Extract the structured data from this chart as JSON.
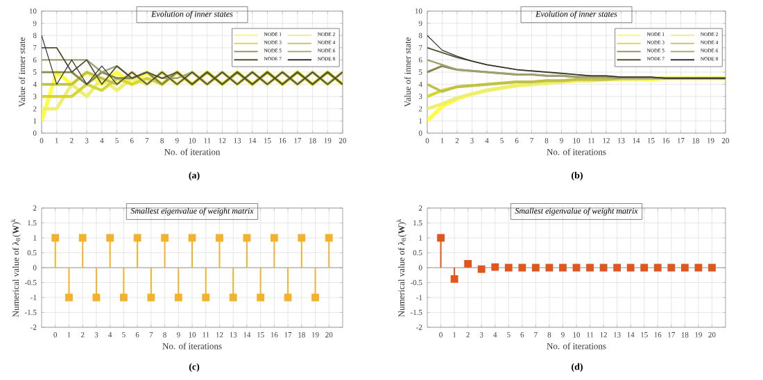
{
  "chart_data": [
    {
      "type": "line",
      "title": "*Evolution of inner states*",
      "xlabel": "No. of iteration",
      "ylabel": "Value of inner state",
      "annotations": [
        "**(a)**"
      ],
      "x": [
        0,
        1,
        2,
        3,
        4,
        5,
        6,
        7,
        8,
        9,
        10,
        11,
        12,
        13,
        14,
        15,
        16,
        17,
        18,
        19,
        20
      ],
      "xlim": [
        0,
        20
      ],
      "ylim": [
        0,
        10
      ],
      "xticks": [
        0,
        1,
        2,
        3,
        4,
        5,
        6,
        7,
        8,
        9,
        10,
        11,
        12,
        13,
        14,
        15,
        16,
        17,
        18,
        19,
        20
      ],
      "yticks": [
        0,
        1,
        2,
        3,
        4,
        5,
        6,
        7,
        8,
        9,
        10
      ],
      "grid": true,
      "legend": "top right",
      "series": [
        {
          "name": "NODE 1",
          "color": "#ffff40",
          "values": [
            1,
            5,
            4,
            5,
            4,
            5,
            4,
            5,
            4,
            5,
            4,
            5,
            4,
            5,
            4,
            5,
            4,
            5,
            4,
            5,
            4
          ]
        },
        {
          "name": "NODE 2",
          "color": "#eeee70",
          "values": [
            2,
            2,
            4,
            3,
            4.5,
            3.5,
            4.5,
            4,
            5,
            4,
            5,
            4,
            5,
            4,
            5,
            4,
            5,
            4,
            5,
            4,
            5
          ]
        },
        {
          "name": "NODE 3",
          "color": "#d6d630",
          "values": [
            3,
            3,
            3,
            4,
            3.5,
            4.5,
            4,
            4.5,
            4,
            5,
            4,
            5,
            4,
            5,
            4,
            5,
            4,
            5,
            4,
            5,
            4
          ]
        },
        {
          "name": "NODE 4",
          "color": "#c0c050",
          "values": [
            4,
            4,
            4,
            5,
            4.5,
            4,
            5,
            4,
            5,
            4,
            5,
            4,
            5,
            4,
            5,
            4,
            5,
            4,
            5,
            4,
            5
          ]
        },
        {
          "name": "NODE 5",
          "color": "#8a8a50",
          "values": [
            5,
            5,
            5,
            4,
            5,
            4.5,
            4.5,
            5,
            4,
            5,
            4,
            5,
            4,
            5,
            4,
            5,
            4,
            5,
            4,
            5,
            4
          ]
        },
        {
          "name": "NODE 6",
          "color": "#a0a070",
          "values": [
            6,
            6,
            6,
            6,
            5,
            5.5,
            4.5,
            5,
            4.5,
            4.5,
            5,
            4,
            5,
            4,
            5,
            4,
            5,
            4,
            5,
            4,
            5
          ]
        },
        {
          "name": "NODE 7",
          "color": "#505030",
          "values": [
            7,
            7,
            5,
            6,
            4,
            5.5,
            4.5,
            5,
            4.5,
            5,
            4,
            5,
            4,
            5,
            4,
            5,
            4,
            5,
            4,
            5,
            4
          ]
        },
        {
          "name": "NODE 8",
          "color": "#303030",
          "values": [
            8,
            4,
            6,
            4,
            5.5,
            4,
            5,
            4,
            5,
            4,
            5,
            4,
            5,
            4,
            5,
            4,
            5,
            4,
            5,
            4,
            5
          ]
        }
      ]
    },
    {
      "type": "line",
      "title": "*Evolution of inner states*",
      "xlabel": "No. of iterations",
      "ylabel": "Value of inner state",
      "annotations": [
        "**(b)**"
      ],
      "x": [
        0,
        1,
        2,
        3,
        4,
        5,
        6,
        7,
        8,
        9,
        10,
        11,
        12,
        13,
        14,
        15,
        16,
        17,
        18,
        19,
        20
      ],
      "xlim": [
        0,
        20
      ],
      "ylim": [
        0,
        10
      ],
      "xticks": [
        0,
        1,
        2,
        3,
        4,
        5,
        6,
        7,
        8,
        9,
        10,
        11,
        12,
        13,
        14,
        15,
        16,
        17,
        18,
        19,
        20
      ],
      "yticks": [
        0,
        1,
        2,
        3,
        4,
        5,
        6,
        7,
        8,
        9,
        10
      ],
      "grid": true,
      "legend": "top right",
      "series": [
        {
          "name": "NODE 1",
          "color": "#ffff40",
          "values": [
            1,
            2.2,
            2.8,
            3.2,
            3.5,
            3.7,
            3.9,
            4,
            4.1,
            4.2,
            4.3,
            4.3,
            4.4,
            4.4,
            4.4,
            4.4,
            4.5,
            4.5,
            4.5,
            4.5,
            4.5
          ]
        },
        {
          "name": "NODE 2",
          "color": "#eeee70",
          "values": [
            2,
            2.4,
            2.9,
            3.2,
            3.5,
            3.7,
            3.9,
            4,
            4.1,
            4.2,
            4.3,
            4.3,
            4.4,
            4.4,
            4.4,
            4.5,
            4.5,
            4.5,
            4.5,
            4.5,
            4.5
          ]
        },
        {
          "name": "NODE 3",
          "color": "#d6d630",
          "values": [
            3,
            3.5,
            3.8,
            3.9,
            4,
            4.1,
            4.2,
            4.2,
            4.3,
            4.3,
            4.4,
            4.4,
            4.4,
            4.5,
            4.5,
            4.5,
            4.5,
            4.5,
            4.5,
            4.5,
            4.5
          ]
        },
        {
          "name": "NODE 4",
          "color": "#c0c050",
          "values": [
            4,
            3.4,
            3.8,
            3.9,
            4,
            4.1,
            4.2,
            4.2,
            4.3,
            4.3,
            4.4,
            4.4,
            4.4,
            4.5,
            4.5,
            4.5,
            4.5,
            4.5,
            4.5,
            4.5,
            4.5
          ]
        },
        {
          "name": "NODE 5",
          "color": "#8a8a50",
          "values": [
            5,
            5.5,
            5.2,
            5.1,
            5,
            4.9,
            4.8,
            4.8,
            4.7,
            4.7,
            4.6,
            4.6,
            4.6,
            4.5,
            4.5,
            4.5,
            4.5,
            4.5,
            4.5,
            4.5,
            4.5
          ]
        },
        {
          "name": "NODE 6",
          "color": "#a0a070",
          "values": [
            6,
            5.6,
            5.2,
            5.1,
            5,
            4.9,
            4.8,
            4.8,
            4.7,
            4.7,
            4.6,
            4.6,
            4.6,
            4.5,
            4.5,
            4.5,
            4.5,
            4.5,
            4.5,
            4.5,
            4.5
          ]
        },
        {
          "name": "NODE 7",
          "color": "#505030",
          "values": [
            7,
            6.6,
            6.2,
            5.9,
            5.6,
            5.4,
            5.2,
            5.1,
            5,
            4.9,
            4.8,
            4.7,
            4.7,
            4.6,
            4.6,
            4.6,
            4.5,
            4.5,
            4.5,
            4.5,
            4.5
          ]
        },
        {
          "name": "NODE 8",
          "color": "#303030",
          "values": [
            8,
            6.8,
            6.3,
            5.9,
            5.6,
            5.4,
            5.2,
            5.1,
            5,
            4.9,
            4.8,
            4.7,
            4.7,
            4.6,
            4.6,
            4.6,
            4.5,
            4.5,
            4.5,
            4.5,
            4.5
          ]
        }
      ]
    },
    {
      "type": "lollipop",
      "title": "*Smallest eigenvalue of weight matrix*",
      "xlabel": "No. of iterations",
      "ylabel": "Numerical value of λ$_{8}$(**W**)$^{k}$",
      "annotations": [
        "**(c)**"
      ],
      "x": [
        0,
        1,
        2,
        3,
        4,
        5,
        6,
        7,
        8,
        9,
        10,
        11,
        12,
        13,
        14,
        15,
        16,
        17,
        18,
        19,
        20
      ],
      "xlim": [
        -1,
        21
      ],
      "ylim": [
        -2,
        2
      ],
      "xticks": [
        0,
        1,
        2,
        3,
        4,
        5,
        6,
        7,
        8,
        9,
        10,
        11,
        12,
        13,
        14,
        15,
        16,
        17,
        18,
        19,
        20
      ],
      "yticks": [
        -2,
        -1.5,
        -1,
        -0.5,
        0,
        0.5,
        1,
        1.5,
        2
      ],
      "grid": true,
      "marker": "square",
      "ref_lines": [
        {
          "axis": "y",
          "value": 0,
          "color": "#999999"
        }
      ],
      "series": [
        {
          "color": "#f2b22c",
          "values": [
            1,
            -1,
            1,
            -1,
            1,
            -1,
            1,
            -1,
            1,
            -1,
            1,
            -1,
            1,
            -1,
            1,
            -1,
            1,
            -1,
            1,
            -1,
            1
          ]
        }
      ]
    },
    {
      "type": "lollipop",
      "title": "*Smallest eigenvalue of weight matrix*",
      "xlabel": "No. of iterations",
      "ylabel": "Numerical value of λ$_{8}$(**W**)$^{k}$",
      "annotations": [
        "**(d)**"
      ],
      "x": [
        0,
        1,
        2,
        3,
        4,
        5,
        6,
        7,
        8,
        9,
        10,
        11,
        12,
        13,
        14,
        15,
        16,
        17,
        18,
        19,
        20
      ],
      "xlim": [
        -1,
        21
      ],
      "ylim": [
        -2,
        2
      ],
      "xticks": [
        0,
        1,
        2,
        3,
        4,
        5,
        6,
        7,
        8,
        9,
        10,
        11,
        12,
        13,
        14,
        15,
        16,
        17,
        18,
        19,
        20
      ],
      "yticks": [
        -2,
        -1.5,
        -1,
        -0.5,
        0,
        0.5,
        1,
        1.5,
        2
      ],
      "grid": true,
      "marker": "square",
      "ref_lines": [
        {
          "axis": "y",
          "value": 0,
          "color": "#999999"
        }
      ],
      "series": [
        {
          "color": "#e2561c",
          "values": [
            1,
            -0.38,
            0.13,
            -0.05,
            0.02,
            0,
            0,
            0,
            0,
            0,
            0,
            0,
            0,
            0,
            0,
            0,
            0,
            0,
            0,
            0,
            0
          ]
        }
      ]
    }
  ]
}
